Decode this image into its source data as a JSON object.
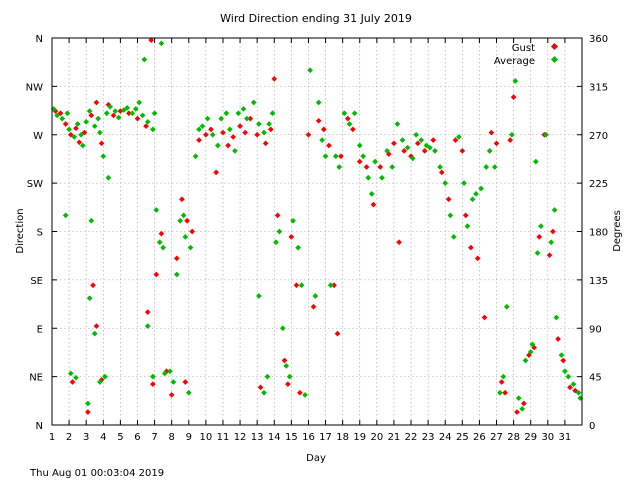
{
  "chart_data": {
    "type": "scatter",
    "title": "Wird Direction ending 31 July 2019",
    "xlabel": "Day",
    "ylabel_left": "Direction",
    "ylabel_right": "Degrees",
    "footer": "Thu Aug 01 00:03:04 2019",
    "xlim": [
      1,
      32
    ],
    "ylim": [
      0,
      360
    ],
    "x_ticks": [
      1,
      2,
      3,
      4,
      5,
      6,
      7,
      8,
      9,
      10,
      11,
      12,
      13,
      14,
      15,
      16,
      17,
      18,
      19,
      20,
      21,
      22,
      23,
      24,
      25,
      26,
      27,
      28,
      29,
      30,
      31
    ],
    "left_ticks": [
      {
        "value": 0,
        "label": "N"
      },
      {
        "value": 45,
        "label": "NE"
      },
      {
        "value": 90,
        "label": "E"
      },
      {
        "value": 135,
        "label": "SE"
      },
      {
        "value": 180,
        "label": "S"
      },
      {
        "value": 225,
        "label": "SW"
      },
      {
        "value": 270,
        "label": "W"
      },
      {
        "value": 315,
        "label": "NW"
      },
      {
        "value": 360,
        "label": "N"
      }
    ],
    "right_ticks": [
      0,
      45,
      90,
      135,
      180,
      225,
      270,
      315,
      360
    ],
    "grid": true,
    "legend_position": "top-right",
    "series": [
      {
        "name": "Gust",
        "color": "#ff0000",
        "points": [
          [
            1.2,
            292
          ],
          [
            1.5,
            290
          ],
          [
            1.8,
            280
          ],
          [
            2.1,
            270
          ],
          [
            2.4,
            276
          ],
          [
            2.6,
            263
          ],
          [
            2.9,
            272
          ],
          [
            3.3,
            288
          ],
          [
            3.6,
            300
          ],
          [
            3.9,
            262
          ],
          [
            4.3,
            298
          ],
          [
            4.6,
            288
          ],
          [
            5.0,
            292
          ],
          [
            5.5,
            290
          ],
          [
            6.0,
            285
          ],
          [
            6.5,
            278
          ],
          [
            6.8,
            358
          ],
          [
            2.2,
            40
          ],
          [
            3.1,
            12
          ],
          [
            3.4,
            130
          ],
          [
            3.6,
            92
          ],
          [
            3.9,
            42
          ],
          [
            6.6,
            105
          ],
          [
            6.9,
            38
          ],
          [
            7.1,
            140
          ],
          [
            7.4,
            178
          ],
          [
            7.7,
            50
          ],
          [
            8.0,
            28
          ],
          [
            8.3,
            155
          ],
          [
            8.6,
            210
          ],
          [
            8.9,
            190
          ],
          [
            9.2,
            180
          ],
          [
            8.8,
            40
          ],
          [
            9.6,
            265
          ],
          [
            10.0,
            270
          ],
          [
            10.3,
            275
          ],
          [
            10.6,
            235
          ],
          [
            11.0,
            272
          ],
          [
            11.3,
            260
          ],
          [
            11.6,
            268
          ],
          [
            12.0,
            278
          ],
          [
            12.3,
            272
          ],
          [
            12.6,
            285
          ],
          [
            13.0,
            270
          ],
          [
            13.5,
            262
          ],
          [
            13.8,
            275
          ],
          [
            13.2,
            35
          ],
          [
            14.0,
            322
          ],
          [
            14.2,
            195
          ],
          [
            14.6,
            60
          ],
          [
            14.8,
            38
          ],
          [
            15.0,
            175
          ],
          [
            15.3,
            130
          ],
          [
            15.5,
            30
          ],
          [
            16.0,
            270
          ],
          [
            16.3,
            110
          ],
          [
            16.6,
            283
          ],
          [
            16.9,
            275
          ],
          [
            17.2,
            260
          ],
          [
            17.5,
            130
          ],
          [
            17.7,
            85
          ],
          [
            17.9,
            250
          ],
          [
            18.3,
            285
          ],
          [
            18.6,
            275
          ],
          [
            19.0,
            245
          ],
          [
            19.4,
            240
          ],
          [
            19.8,
            205
          ],
          [
            20.2,
            240
          ],
          [
            20.7,
            252
          ],
          [
            21.0,
            262
          ],
          [
            21.3,
            170
          ],
          [
            21.6,
            255
          ],
          [
            22.0,
            250
          ],
          [
            22.4,
            262
          ],
          [
            22.8,
            255
          ],
          [
            23.3,
            265
          ],
          [
            23.8,
            235
          ],
          [
            24.2,
            210
          ],
          [
            24.6,
            265
          ],
          [
            25.0,
            255
          ],
          [
            25.2,
            195
          ],
          [
            25.5,
            165
          ],
          [
            25.9,
            155
          ],
          [
            26.3,
            100
          ],
          [
            26.7,
            272
          ],
          [
            27.0,
            262
          ],
          [
            27.3,
            40
          ],
          [
            27.5,
            30
          ],
          [
            27.8,
            265
          ],
          [
            28.0,
            305
          ],
          [
            28.2,
            12
          ],
          [
            28.6,
            20
          ],
          [
            28.9,
            65
          ],
          [
            29.2,
            72
          ],
          [
            29.5,
            175
          ],
          [
            29.8,
            270
          ],
          [
            30.1,
            158
          ],
          [
            30.3,
            180
          ],
          [
            30.6,
            80
          ],
          [
            30.9,
            60
          ],
          [
            31.3,
            35
          ],
          [
            31.6,
            32
          ]
        ]
      },
      {
        "name": "Average",
        "color": "#00bb00",
        "points": [
          [
            1.1,
            294
          ],
          [
            1.3,
            288
          ],
          [
            1.6,
            285
          ],
          [
            1.9,
            290
          ],
          [
            2.0,
            275
          ],
          [
            2.3,
            268
          ],
          [
            2.5,
            280
          ],
          [
            2.7,
            270
          ],
          [
            2.8,
            260
          ],
          [
            3.0,
            282
          ],
          [
            3.2,
            292
          ],
          [
            3.5,
            278
          ],
          [
            3.7,
            285
          ],
          [
            3.8,
            272
          ],
          [
            4.0,
            250
          ],
          [
            4.2,
            290
          ],
          [
            4.4,
            296
          ],
          [
            4.7,
            292
          ],
          [
            4.9,
            286
          ],
          [
            5.2,
            293
          ],
          [
            5.4,
            295
          ],
          [
            5.7,
            290
          ],
          [
            5.9,
            294
          ],
          [
            6.1,
            300
          ],
          [
            6.3,
            288
          ],
          [
            6.6,
            282
          ],
          [
            6.9,
            275
          ],
          [
            7.0,
            290
          ],
          [
            7.4,
            355
          ],
          [
            1.8,
            195
          ],
          [
            2.1,
            48
          ],
          [
            2.4,
            44
          ],
          [
            3.1,
            20
          ],
          [
            3.2,
            118
          ],
          [
            3.3,
            190
          ],
          [
            3.5,
            85
          ],
          [
            3.8,
            40
          ],
          [
            4.1,
            45
          ],
          [
            4.3,
            230
          ],
          [
            6.4,
            340
          ],
          [
            6.6,
            92
          ],
          [
            6.9,
            45
          ],
          [
            7.1,
            200
          ],
          [
            7.3,
            170
          ],
          [
            7.5,
            165
          ],
          [
            7.6,
            48
          ],
          [
            7.9,
            50
          ],
          [
            8.1,
            40
          ],
          [
            8.3,
            140
          ],
          [
            8.5,
            190
          ],
          [
            8.7,
            195
          ],
          [
            8.8,
            175
          ],
          [
            9.0,
            30
          ],
          [
            9.1,
            165
          ],
          [
            9.4,
            250
          ],
          [
            9.6,
            275
          ],
          [
            9.8,
            278
          ],
          [
            10.1,
            285
          ],
          [
            10.4,
            270
          ],
          [
            10.7,
            260
          ],
          [
            10.9,
            285
          ],
          [
            11.2,
            290
          ],
          [
            11.4,
            275
          ],
          [
            11.7,
            255
          ],
          [
            11.9,
            290
          ],
          [
            12.2,
            294
          ],
          [
            12.4,
            285
          ],
          [
            12.8,
            300
          ],
          [
            13.1,
            280
          ],
          [
            13.4,
            272
          ],
          [
            13.7,
            280
          ],
          [
            13.9,
            290
          ],
          [
            13.1,
            120
          ],
          [
            13.4,
            30
          ],
          [
            13.6,
            45
          ],
          [
            14.1,
            170
          ],
          [
            14.3,
            180
          ],
          [
            14.5,
            90
          ],
          [
            14.7,
            55
          ],
          [
            14.9,
            45
          ],
          [
            15.1,
            190
          ],
          [
            15.4,
            165
          ],
          [
            15.6,
            130
          ],
          [
            15.8,
            28
          ],
          [
            16.1,
            330
          ],
          [
            16.4,
            120
          ],
          [
            16.6,
            300
          ],
          [
            16.8,
            265
          ],
          [
            17.0,
            250
          ],
          [
            17.3,
            130
          ],
          [
            17.6,
            250
          ],
          [
            17.8,
            240
          ],
          [
            18.1,
            290
          ],
          [
            18.4,
            280
          ],
          [
            18.7,
            290
          ],
          [
            19.0,
            260
          ],
          [
            19.2,
            250
          ],
          [
            19.5,
            230
          ],
          [
            19.7,
            215
          ],
          [
            19.9,
            245
          ],
          [
            20.3,
            230
          ],
          [
            20.6,
            255
          ],
          [
            20.9,
            240
          ],
          [
            21.2,
            280
          ],
          [
            21.5,
            265
          ],
          [
            21.8,
            258
          ],
          [
            22.1,
            248
          ],
          [
            22.3,
            270
          ],
          [
            22.6,
            265
          ],
          [
            22.9,
            260
          ],
          [
            23.1,
            258
          ],
          [
            23.4,
            255
          ],
          [
            23.7,
            240
          ],
          [
            24.0,
            225
          ],
          [
            24.3,
            195
          ],
          [
            24.5,
            175
          ],
          [
            24.8,
            268
          ],
          [
            25.1,
            225
          ],
          [
            25.3,
            185
          ],
          [
            25.6,
            210
          ],
          [
            25.8,
            215
          ],
          [
            26.1,
            220
          ],
          [
            26.4,
            240
          ],
          [
            26.6,
            255
          ],
          [
            26.9,
            240
          ],
          [
            27.2,
            30
          ],
          [
            27.4,
            45
          ],
          [
            27.6,
            110
          ],
          [
            27.9,
            270
          ],
          [
            28.1,
            320
          ],
          [
            28.3,
            25
          ],
          [
            28.5,
            15
          ],
          [
            28.7,
            60
          ],
          [
            29.0,
            68
          ],
          [
            29.1,
            75
          ],
          [
            29.3,
            245
          ],
          [
            29.4,
            160
          ],
          [
            29.6,
            185
          ],
          [
            29.9,
            270
          ],
          [
            30.2,
            170
          ],
          [
            30.4,
            200
          ],
          [
            30.5,
            100
          ],
          [
            30.8,
            65
          ],
          [
            31.0,
            50
          ],
          [
            31.2,
            45
          ],
          [
            31.5,
            38
          ],
          [
            31.8,
            30
          ],
          [
            31.9,
            25
          ]
        ]
      }
    ]
  }
}
